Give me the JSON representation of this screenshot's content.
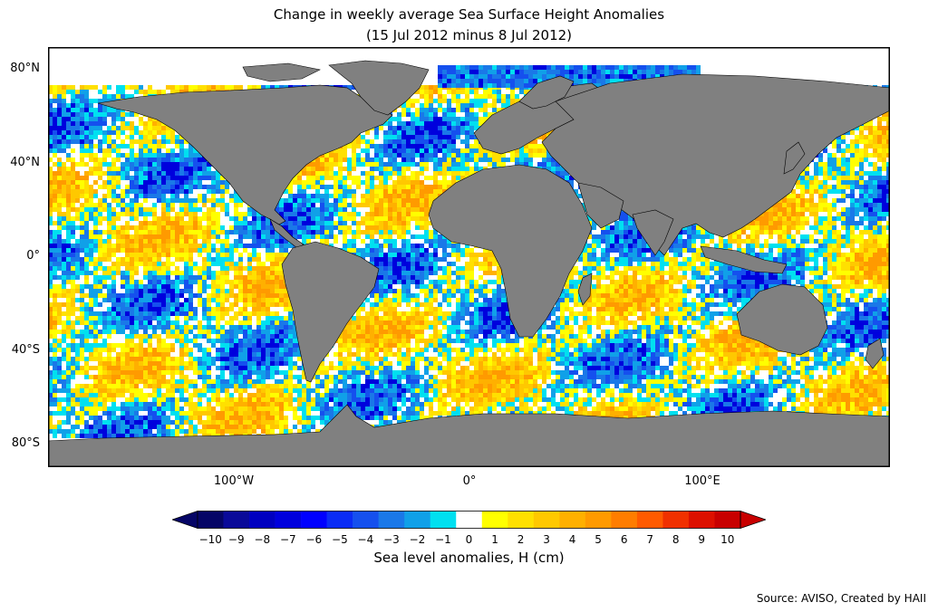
{
  "header": {
    "title": "Change in weekly average Sea Surface Height Anomalies",
    "subtitle": "(15 Jul 2012 minus 8 Jul 2012)"
  },
  "axes": {
    "lat_labels": [
      "80°N",
      "40°N",
      "0°",
      "40°S",
      "80°S"
    ],
    "lat_values": [
      80,
      40,
      0,
      -40,
      -80
    ],
    "lon_labels": [
      "100°W",
      "0°",
      "100°E"
    ],
    "lon_values": [
      -100,
      0,
      100
    ],
    "lat_range": [
      -90,
      90
    ],
    "lon_range": [
      -180,
      180
    ]
  },
  "colorbar": {
    "label": "Sea level anomalies, H (cm)",
    "ticks": [
      "−10",
      "−9",
      "−8",
      "−7",
      "−6",
      "−5",
      "−4",
      "−3",
      "−2",
      "−1",
      "0",
      "1",
      "2",
      "3",
      "4",
      "5",
      "6",
      "7",
      "8",
      "9",
      "10"
    ],
    "colors": [
      "#050566",
      "#0a0a99",
      "#0000c0",
      "#0000dd",
      "#0000ff",
      "#0a2cf5",
      "#1550ee",
      "#1a78e8",
      "#10a0e8",
      "#00e0f0",
      "#ffffff",
      "#ffff00",
      "#ffe000",
      "#ffc800",
      "#ffb000",
      "#ff9a00",
      "#ff7d00",
      "#ff5a00",
      "#f03000",
      "#dd1000",
      "#c80000"
    ],
    "extend": "both"
  },
  "colors": {
    "land": "#808080",
    "ice": "#ffffff",
    "frame": "#000000"
  },
  "source": "Source: AVISO, Created by HAII"
}
